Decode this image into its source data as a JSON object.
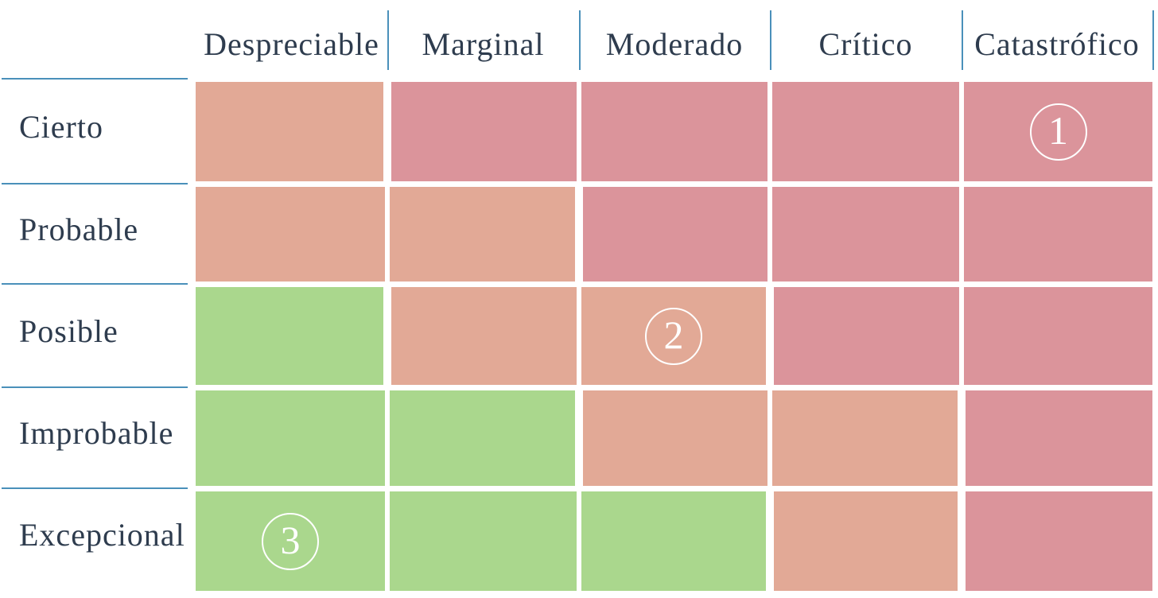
{
  "chart_data": {
    "type": "heatmap",
    "columns": [
      "Despreciable",
      "Marginal",
      "Moderado",
      "Crítico",
      "Catastrófico"
    ],
    "rows": [
      "Cierto",
      "Probable",
      "Posible",
      "Improbable",
      "Excepcional"
    ],
    "cells": [
      [
        "medium",
        "high",
        "high",
        "high",
        "high"
      ],
      [
        "medium",
        "medium",
        "high",
        "high",
        "high"
      ],
      [
        "low",
        "medium",
        "medium",
        "high",
        "high"
      ],
      [
        "low",
        "low",
        "medium",
        "medium",
        "high"
      ],
      [
        "low",
        "low",
        "low",
        "medium",
        "high"
      ]
    ],
    "level_colors": {
      "low": "#aad78d",
      "medium": "#e2a996",
      "high": "#db949b"
    },
    "markers": [
      {
        "label": "1",
        "row": 0,
        "col": 4
      },
      {
        "label": "2",
        "row": 2,
        "col": 2
      },
      {
        "label": "3",
        "row": 4,
        "col": 0
      }
    ],
    "legend_position": "none",
    "grid": "white-gutters"
  },
  "colors": {
    "line_blue": "#4a90ba",
    "text": "#2e3c4e",
    "background": "#ffffff"
  }
}
